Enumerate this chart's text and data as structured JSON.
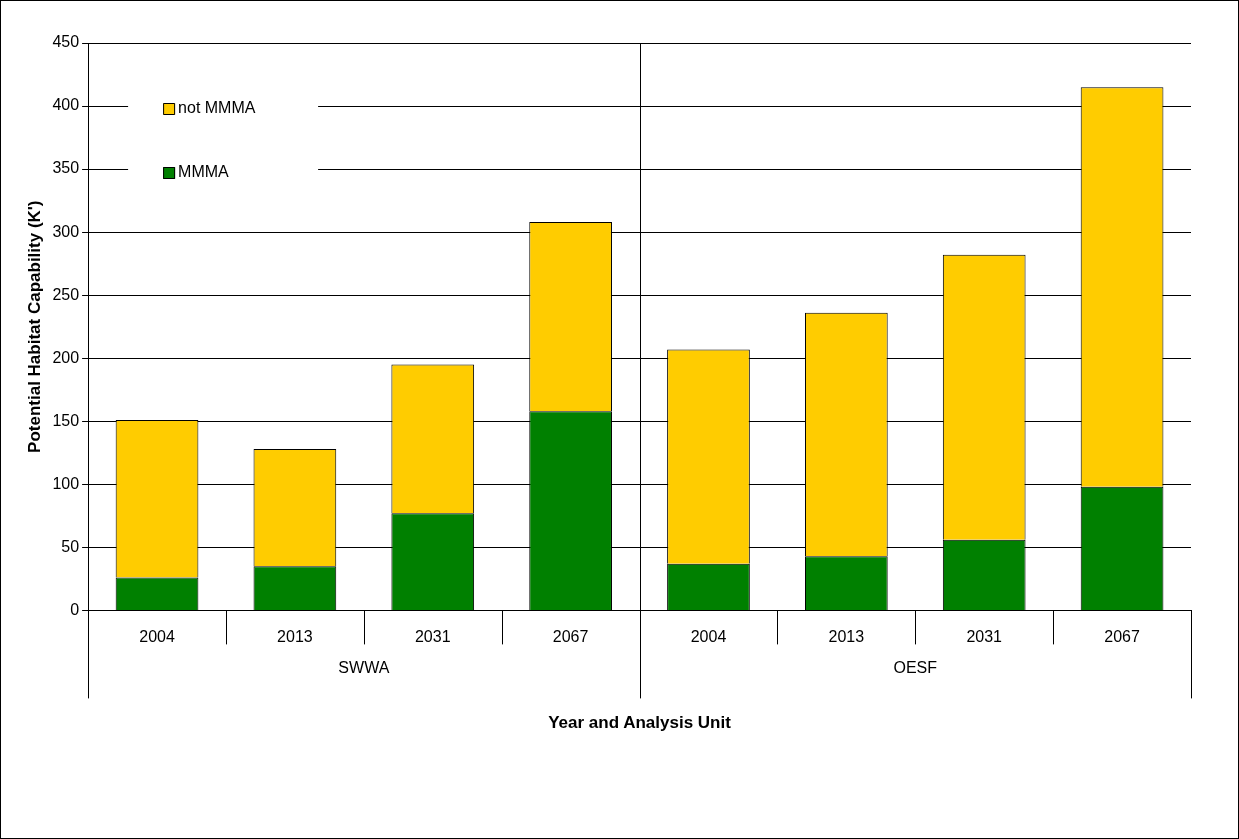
{
  "chart_data": {
    "type": "bar",
    "stacked": true,
    "xlabel": "Year and Analysis Unit",
    "ylabel": "Potential Habitat Capability (K')",
    "categories": [
      "2004",
      "2013",
      "2031",
      "2067",
      "2004",
      "2013",
      "2031",
      "2067"
    ],
    "annotations": [
      "SWWA",
      "OESF"
    ],
    "series": [
      {
        "name": "MMMA",
        "color": "#008000",
        "values": [
          26,
          35,
          77,
          158,
          37,
          43,
          56,
          98
        ]
      },
      {
        "name": "not MMMA",
        "color": "#ffcc00",
        "values": [
          125,
          93,
          118,
          150,
          170,
          193,
          226,
          317
        ]
      }
    ],
    "ylim": [
      0,
      450
    ],
    "yticks": [
      0,
      50,
      100,
      150,
      200,
      250,
      300,
      350,
      400,
      450
    ],
    "grid": "y",
    "legend": "top left"
  }
}
